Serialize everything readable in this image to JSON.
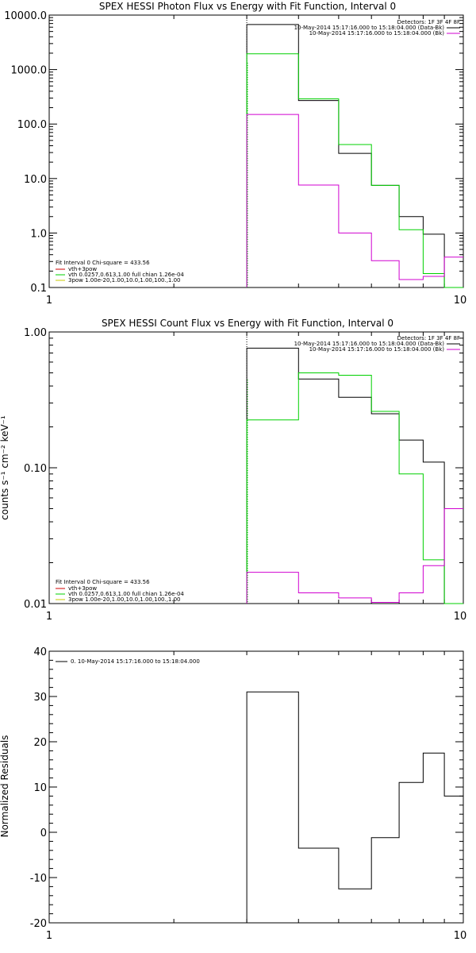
{
  "colors": {
    "black": "#000000",
    "green": "#00d000",
    "magenta": "#d000d0",
    "red": "#d00000",
    "yellow": "#c8c800"
  },
  "chart_data": [
    {
      "type": "line",
      "step": true,
      "title": "SPEX HESSI Photon Flux vs Energy with Fit Function, Interval 0",
      "ylabel": "",
      "xlabel": "",
      "xscale": "log",
      "yscale": "log",
      "xlim": [
        1,
        10
      ],
      "ylim": [
        0.1,
        10000
      ],
      "xticks": [
        "1",
        "10"
      ],
      "yticks": [
        "0.1",
        "1.0",
        "10.0",
        "100.0",
        "1000.0",
        "10000.0"
      ],
      "ytick_values": [
        0.1,
        1,
        10,
        100,
        1000,
        10000
      ],
      "legend": {
        "placement": "top-right",
        "header": "Detectors: 1F 3F 4F 8F",
        "entries": [
          {
            "text": "10-May-2014 15:17:16.000 to 15:18:04.000 (Data-Bk)",
            "color": "#000000"
          },
          {
            "text": "10-May-2014 15:17:16.000 to 15:18:04.000 (Bk)",
            "color": "#d000d0"
          }
        ]
      },
      "fit_legend": {
        "header": "Fit Interval 0   Chi-square = 433.56",
        "entries": [
          {
            "text": "vth+3pow",
            "color": "#d00000"
          },
          {
            "text": "vth 0.0257,0.613,1.00  full chian 1.26e-04",
            "color": "#00d000"
          },
          {
            "text": "3pow 1.00e-20,1.00,10.0,1.00,100.,1.00",
            "color": "#c8c800"
          }
        ]
      },
      "bin_edges": [
        3,
        4,
        5,
        6,
        7,
        8,
        9,
        10
      ],
      "vline_x": 3,
      "series": [
        {
          "color": "#000000",
          "values": [
            6700,
            270,
            29,
            7.5,
            2.0,
            0.95,
            0.1
          ]
        },
        {
          "color": "#00d000",
          "values": [
            1950,
            290,
            42,
            7.5,
            1.15,
            0.18,
            0.1
          ]
        },
        {
          "color": "#d000d0",
          "values": [
            150,
            7.6,
            1.0,
            0.31,
            0.14,
            0.16,
            0.36
          ]
        }
      ]
    },
    {
      "type": "line",
      "step": true,
      "title": "SPEX HESSI Count Flux vs Energy with Fit Function, Interval 0",
      "ylabel": "counts s⁻¹ cm⁻² keV⁻¹",
      "xlabel": "",
      "xscale": "log",
      "yscale": "log",
      "xlim": [
        1,
        10
      ],
      "ylim": [
        0.01,
        1.0
      ],
      "xticks": [
        "1",
        "10"
      ],
      "yticks": [
        "0.01",
        "0.10",
        "1.00"
      ],
      "ytick_values": [
        0.01,
        0.1,
        1.0
      ],
      "legend": {
        "placement": "top-right",
        "header": "Detectors: 1F 3F 4F 8F",
        "entries": [
          {
            "text": "10-May-2014 15:17:16.000 to 15:18:04.000 (Data-Bk)",
            "color": "#000000"
          },
          {
            "text": "10-May-2014 15:17:16.000 to 15:18:04.000 (Bk)",
            "color": "#d000d0"
          }
        ]
      },
      "fit_legend": {
        "header": "Fit Interval 0   Chi-square = 433.56",
        "entries": [
          {
            "text": "vth+3pow",
            "color": "#d00000"
          },
          {
            "text": "vth 0.0257,0.613,1.00  full chian 1.26e-04",
            "color": "#00d000"
          },
          {
            "text": "3pow 1.00e-20,1.00,10.0,1.00,100.,1.00",
            "color": "#c8c800"
          }
        ]
      },
      "bin_edges": [
        3,
        4,
        5,
        6,
        7,
        8,
        9,
        10
      ],
      "vline_x": 3,
      "series": [
        {
          "color": "#000000",
          "values": [
            0.76,
            0.45,
            0.33,
            0.25,
            0.16,
            0.11,
            0.01
          ]
        },
        {
          "color": "#00d000",
          "values": [
            0.225,
            0.5,
            0.48,
            0.26,
            0.09,
            0.021,
            0.01
          ]
        },
        {
          "color": "#d000d0",
          "values": [
            0.017,
            0.012,
            0.011,
            0.0102,
            0.012,
            0.019,
            0.05
          ]
        }
      ]
    },
    {
      "type": "line",
      "step": true,
      "title": "",
      "ylabel": "Normalized Residuals",
      "xlabel": "",
      "xscale": "log",
      "yscale": "linear",
      "xlim": [
        1,
        10
      ],
      "ylim": [
        -20,
        40
      ],
      "xticks": [
        "1",
        "10"
      ],
      "yticks": [
        "-20",
        "-10",
        "0",
        "10",
        "20",
        "30",
        "40"
      ],
      "ytick_values": [
        -20,
        -10,
        0,
        10,
        20,
        30,
        40
      ],
      "legend": {
        "placement": "top-left",
        "header": "",
        "entries": [
          {
            "text": "0. 10-May-2014 15:17:16.000 to 15:18:04.000",
            "color": "#000000"
          }
        ]
      },
      "bin_edges": [
        3,
        4,
        5,
        6,
        7,
        8,
        9,
        10
      ],
      "series": [
        {
          "color": "#000000",
          "values": [
            31,
            -3.5,
            -12.5,
            -1.2,
            11,
            17.5,
            8
          ]
        }
      ]
    }
  ]
}
